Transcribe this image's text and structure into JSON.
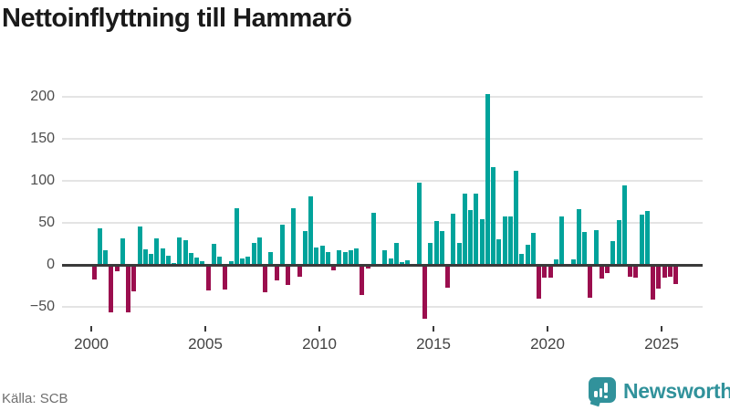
{
  "title": "Nettoinflyttning till Hammarö",
  "source_label": "Källa: SCB",
  "brand": {
    "name": "Newsworthy",
    "icon": "bar-chart-speech-bubble-icon",
    "color": "#31929b"
  },
  "colors": {
    "positive_bar": "#00a39b",
    "negative_bar": "#9b0e4e",
    "gridline": "#e4e4e4",
    "zero_line": "#3a3a3a",
    "axis_text": "#4d4d4d",
    "title_text": "#1a1a1a",
    "source_text": "#6f6f6f"
  },
  "chart_data": {
    "type": "bar",
    "title": "Nettoinflyttning till Hammarö",
    "xlabel": "",
    "ylabel": "",
    "grid": "horizontal",
    "legend": "none",
    "ylim": [
      -75,
      215
    ],
    "y_ticks": [
      "200",
      "150",
      "100",
      "50",
      "0",
      "−50"
    ],
    "y_tick_values": [
      200,
      150,
      100,
      50,
      0,
      -50
    ],
    "x_tick_labels": [
      "2000",
      "2005",
      "2010",
      "2015",
      "2020",
      "2025"
    ],
    "x_tick_years": [
      2000,
      2005,
      2010,
      2015,
      2020,
      2025
    ],
    "period": "quarterly",
    "start": "2000-Q1",
    "end": "2025-Q3",
    "quarters": [
      "2000-Q1",
      "2000-Q2",
      "2000-Q3",
      "2000-Q4",
      "2001-Q1",
      "2001-Q2",
      "2001-Q3",
      "2001-Q4",
      "2002-Q1",
      "2002-Q2",
      "2002-Q3",
      "2002-Q4",
      "2003-Q1",
      "2003-Q2",
      "2003-Q3",
      "2003-Q4",
      "2004-Q1",
      "2004-Q2",
      "2004-Q3",
      "2004-Q4",
      "2005-Q1",
      "2005-Q2",
      "2005-Q3",
      "2005-Q4",
      "2006-Q1",
      "2006-Q2",
      "2006-Q3",
      "2006-Q4",
      "2007-Q1",
      "2007-Q2",
      "2007-Q3",
      "2007-Q4",
      "2008-Q1",
      "2008-Q2",
      "2008-Q3",
      "2008-Q4",
      "2009-Q1",
      "2009-Q2",
      "2009-Q3",
      "2009-Q4",
      "2010-Q1",
      "2010-Q2",
      "2010-Q3",
      "2010-Q4",
      "2011-Q1",
      "2011-Q2",
      "2011-Q3",
      "2011-Q4",
      "2012-Q1",
      "2012-Q2",
      "2012-Q3",
      "2012-Q4",
      "2013-Q1",
      "2013-Q2",
      "2013-Q3",
      "2013-Q4",
      "2014-Q1",
      "2014-Q2",
      "2014-Q3",
      "2014-Q4",
      "2015-Q1",
      "2015-Q2",
      "2015-Q3",
      "2015-Q4",
      "2016-Q1",
      "2016-Q2",
      "2016-Q3",
      "2016-Q4",
      "2017-Q1",
      "2017-Q2",
      "2017-Q3",
      "2017-Q4",
      "2018-Q1",
      "2018-Q2",
      "2018-Q3",
      "2018-Q4",
      "2019-Q1",
      "2019-Q2",
      "2019-Q3",
      "2019-Q4",
      "2020-Q1",
      "2020-Q2",
      "2020-Q3",
      "2020-Q4",
      "2021-Q1",
      "2021-Q2",
      "2021-Q3",
      "2021-Q4",
      "2022-Q1",
      "2022-Q2",
      "2022-Q3",
      "2022-Q4",
      "2023-Q1",
      "2023-Q2",
      "2023-Q3",
      "2023-Q4",
      "2024-Q1",
      "2024-Q2",
      "2024-Q3",
      "2024-Q4",
      "2025-Q1",
      "2025-Q2",
      "2025-Q3"
    ],
    "values": [
      -17,
      43,
      17,
      -56,
      -8,
      32,
      -56,
      -32,
      46,
      19,
      13,
      32,
      20,
      11,
      2,
      33,
      29,
      14,
      9,
      4,
      -30,
      25,
      10,
      -29,
      4,
      67,
      8,
      10,
      26,
      33,
      -33,
      15,
      -18,
      48,
      -24,
      67,
      -14,
      40,
      82,
      21,
      23,
      15,
      -7,
      17,
      15,
      17,
      20,
      -36,
      -4,
      62,
      0,
      17,
      8,
      26,
      3,
      5,
      0,
      98,
      -64,
      26,
      52,
      40,
      -27,
      61,
      26,
      85,
      65,
      85,
      54,
      203,
      116,
      30,
      58,
      58,
      112,
      13,
      24,
      38,
      -40,
      -15,
      -15,
      6,
      58,
      0,
      7,
      66,
      39,
      -39,
      41,
      -16,
      -10,
      28,
      53,
      95,
      -14,
      -15,
      60,
      64,
      -41,
      -28,
      -15,
      -14,
      -23
    ]
  }
}
